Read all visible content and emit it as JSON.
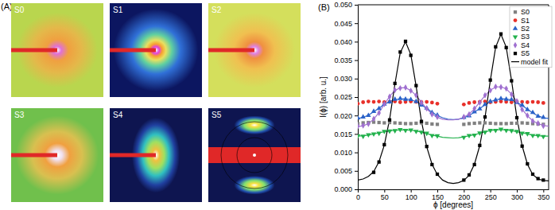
{
  "panel_a": {
    "label": "(A)",
    "tiles": [
      "S0",
      "S1",
      "S2",
      "S3",
      "S4",
      "S5"
    ]
  },
  "chart_data": {
    "type": "scatter",
    "title": "(B)",
    "x_label": "ϕ [degrees]",
    "y_label": "I(ϕ) [arb. u.]",
    "fit_label": "model fit",
    "line_style": "solid",
    "legend": "upper right",
    "xlim": [
      0,
      360
    ],
    "xticks": [
      0,
      50,
      100,
      150,
      200,
      250,
      300,
      350
    ],
    "ylim": [
      0,
      0.05
    ],
    "yticks": [
      {
        "value": 0,
        "label": "0.000"
      },
      {
        "value": 0.005,
        "label": "0.005"
      },
      {
        "value": 0.01,
        "label": "0.010"
      },
      {
        "value": 0.015,
        "label": "0.015"
      },
      {
        "value": 0.02,
        "label": "0.020"
      },
      {
        "value": 0.025,
        "label": "0.025"
      },
      {
        "value": 0.03,
        "label": "0.030"
      },
      {
        "value": 0.035,
        "label": "0.035"
      },
      {
        "value": 0.04,
        "label": "0.040"
      },
      {
        "value": 0.045,
        "label": "0.045"
      },
      {
        "value": 0.05,
        "label": "0.050"
      }
    ],
    "x": [
      0,
      10,
      20,
      30,
      40,
      50,
      60,
      70,
      80,
      90,
      100,
      110,
      120,
      130,
      140,
      150,
      160,
      170,
      180,
      190,
      200,
      210,
      220,
      230,
      240,
      250,
      260,
      270,
      280,
      290,
      300,
      310,
      320,
      330,
      340,
      350,
      360
    ],
    "series": [
      {
        "name": "S0",
        "color": "#808080",
        "marker": "square",
        "values": [
          0.0178,
          0.018,
          0.0181,
          0.0182,
          0.0181,
          0.018,
          0.0181,
          0.018,
          0.0179,
          0.0178,
          0.0178,
          0.0179,
          0.018,
          0.0179,
          0.0177,
          0.0176,
          null,
          null,
          null,
          null,
          0.0176,
          0.0178,
          0.0179,
          0.018,
          0.018,
          0.0179,
          0.0178,
          0.0178,
          0.0178,
          0.0179,
          0.0179,
          0.018,
          0.0179,
          0.0178,
          0.0177,
          0.0176,
          null
        ]
      },
      {
        "name": "S1",
        "color": "#e8302a",
        "marker": "circle",
        "values": [
          0.0232,
          0.0236,
          0.0238,
          0.0237,
          0.0238,
          0.0236,
          0.0237,
          0.0238,
          0.0236,
          0.0237,
          0.0238,
          0.0237,
          0.0236,
          0.0237,
          0.0235,
          0.0232,
          null,
          null,
          null,
          null,
          0.023,
          0.0234,
          0.0236,
          0.0237,
          0.0238,
          0.0236,
          0.0237,
          0.0238,
          0.0237,
          0.0236,
          0.0238,
          0.0237,
          0.0236,
          0.0237,
          0.0236,
          0.0234,
          null
        ]
      },
      {
        "name": "S2",
        "color": "#2a62c8",
        "marker": "triangle-up",
        "values": [
          0.0193,
          0.0196,
          0.02,
          0.0211,
          0.0219,
          0.0231,
          0.0237,
          0.0244,
          0.0246,
          0.0244,
          0.0243,
          0.0238,
          0.0228,
          0.022,
          0.0208,
          0.0201,
          null,
          null,
          null,
          null,
          0.0195,
          0.0199,
          0.021,
          0.0218,
          0.023,
          0.0238,
          0.0242,
          0.0246,
          0.0244,
          0.0243,
          0.0235,
          0.0228,
          0.0216,
          0.0208,
          0.0198,
          0.0195,
          null
        ],
        "fit": [
          0.0192,
          0.0195,
          0.0201,
          0.021,
          0.022,
          0.023,
          0.0238,
          0.0243,
          0.0245,
          0.0245,
          0.0243,
          0.0237,
          0.0229,
          0.0219,
          0.0209,
          0.02,
          0.0194,
          0.019,
          0.0189,
          0.019,
          0.0194,
          0.02,
          0.0209,
          0.0219,
          0.0229,
          0.0237,
          0.0243,
          0.0245,
          0.0245,
          0.0242,
          0.0236,
          0.0227,
          0.0217,
          0.0207,
          0.0199,
          0.0194,
          0.0192
        ]
      },
      {
        "name": "S3",
        "color": "#22b14c",
        "marker": "triangle-down",
        "values": [
          0.0145,
          0.0144,
          0.0148,
          0.015,
          0.0152,
          0.0157,
          0.0158,
          0.0159,
          0.0162,
          0.016,
          0.0161,
          0.0157,
          0.0155,
          0.0152,
          0.0146,
          0.0145,
          null,
          null,
          null,
          null,
          0.0141,
          0.0146,
          0.0147,
          0.0153,
          0.0155,
          0.016,
          0.016,
          0.0163,
          0.016,
          0.0159,
          0.0157,
          0.0152,
          0.0151,
          0.0146,
          0.0146,
          0.0143,
          null
        ],
        "fit": [
          0.0144,
          0.0145,
          0.0147,
          0.015,
          0.0153,
          0.0156,
          0.0158,
          0.016,
          0.0161,
          0.0161,
          0.016,
          0.0158,
          0.0155,
          0.0151,
          0.0147,
          0.0144,
          0.0141,
          0.014,
          0.0139,
          0.014,
          0.0142,
          0.0145,
          0.0148,
          0.0152,
          0.0156,
          0.0159,
          0.0161,
          0.0162,
          0.0161,
          0.0159,
          0.0156,
          0.0153,
          0.015,
          0.0147,
          0.0145,
          0.0144,
          0.0144
        ]
      },
      {
        "name": "S4",
        "color": "#a070d0",
        "marker": "diamond",
        "values": [
          0.0171,
          0.0173,
          0.0177,
          0.0191,
          0.0207,
          0.0231,
          0.0251,
          0.0269,
          0.0274,
          0.0276,
          0.0267,
          0.0255,
          0.0235,
          0.0219,
          0.0203,
          0.0196,
          null,
          null,
          null,
          null,
          0.0196,
          0.0203,
          0.0219,
          0.0235,
          0.0255,
          0.0268,
          0.0278,
          0.0277,
          0.0273,
          0.0257,
          0.0239,
          0.0216,
          0.02,
          0.0185,
          0.0179,
          0.0172,
          null
        ],
        "fit": [
          0.017,
          0.0172,
          0.0178,
          0.019,
          0.0208,
          0.023,
          0.0252,
          0.0268,
          0.0275,
          0.0275,
          0.0268,
          0.0254,
          0.0236,
          0.0218,
          0.0204,
          0.0195,
          0.019,
          0.0188,
          0.0188,
          0.019,
          0.0195,
          0.0204,
          0.0218,
          0.0236,
          0.0254,
          0.0269,
          0.0277,
          0.0278,
          0.0272,
          0.0258,
          0.0238,
          0.0217,
          0.0199,
          0.0186,
          0.0178,
          0.0173,
          0.0171
        ]
      },
      {
        "name": "S5",
        "color": "#000000",
        "marker": "square",
        "values": [
          null,
          null,
          null,
          0.0046,
          0.0074,
          0.0121,
          0.0188,
          0.0287,
          0.0372,
          0.0401,
          0.0363,
          0.0281,
          0.0184,
          0.0116,
          0.0067,
          0.0041,
          null,
          null,
          null,
          null,
          0.0025,
          0.0039,
          0.0067,
          0.0119,
          0.0196,
          0.0296,
          0.0386,
          0.0421,
          0.0384,
          0.0294,
          0.0194,
          0.0117,
          0.0069,
          0.0041,
          0.0029,
          0.0025,
          null
        ],
        "fit": [
          0.0025,
          0.0028,
          0.0035,
          0.0048,
          0.0075,
          0.012,
          0.019,
          0.0285,
          0.037,
          0.04,
          0.0365,
          0.028,
          0.0185,
          0.0115,
          0.0068,
          0.004,
          0.0025,
          0.0018,
          0.0016,
          0.0018,
          0.0024,
          0.0038,
          0.0068,
          0.0118,
          0.0195,
          0.0295,
          0.0385,
          0.042,
          0.0385,
          0.0295,
          0.0195,
          0.0118,
          0.0068,
          0.004,
          0.0028,
          0.0024,
          0.0023
        ]
      }
    ]
  }
}
